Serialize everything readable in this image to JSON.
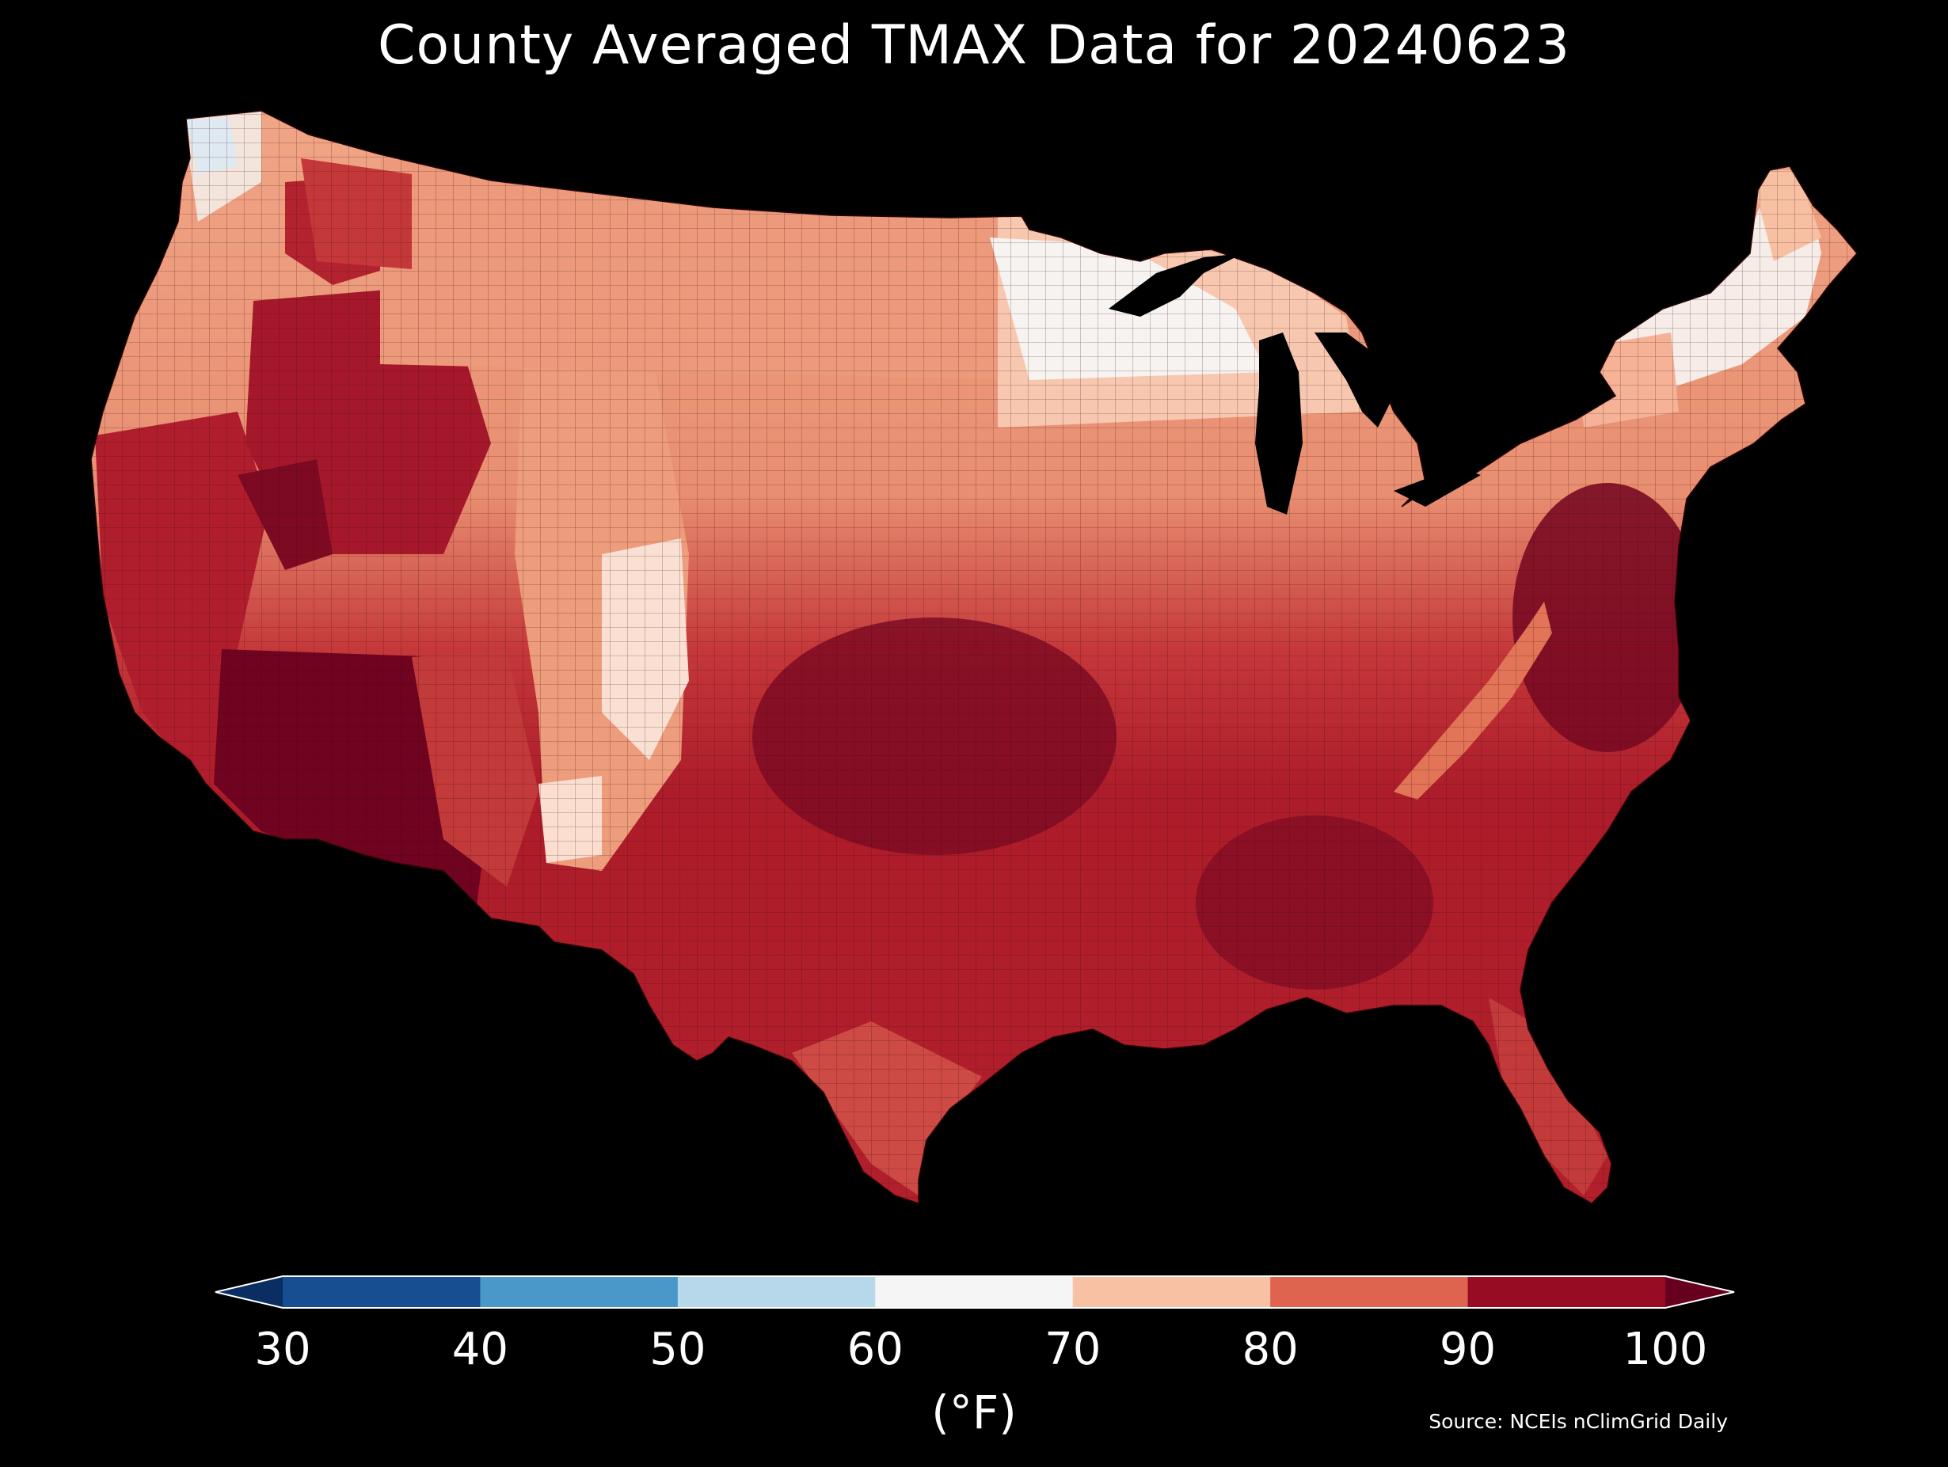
{
  "title": "County Averaged TMAX Data for 20240623",
  "legend": {
    "unit": "(°F)",
    "ticks": [
      "30",
      "40",
      "50",
      "60",
      "70",
      "80",
      "90",
      "100"
    ],
    "bins": [
      {
        "from": 30,
        "to": 40,
        "color": "#174e91"
      },
      {
        "from": 40,
        "to": 50,
        "color": "#4a97c9"
      },
      {
        "from": 50,
        "to": 60,
        "color": "#b7d7ea"
      },
      {
        "from": 60,
        "to": 70,
        "color": "#f5f5f5"
      },
      {
        "from": 70,
        "to": 80,
        "color": "#f9c1a3"
      },
      {
        "from": 80,
        "to": 90,
        "color": "#de6450"
      },
      {
        "from": 90,
        "to": 100,
        "color": "#980c23"
      }
    ],
    "under_color": "#0b2e62",
    "over_color": "#67001f"
  },
  "source": "Source: NCEIs nClimGrid Daily",
  "map": {
    "region": "Contiguous United States counties",
    "background_color": "#000000",
    "county_border_color": "#3a0a0a"
  }
}
